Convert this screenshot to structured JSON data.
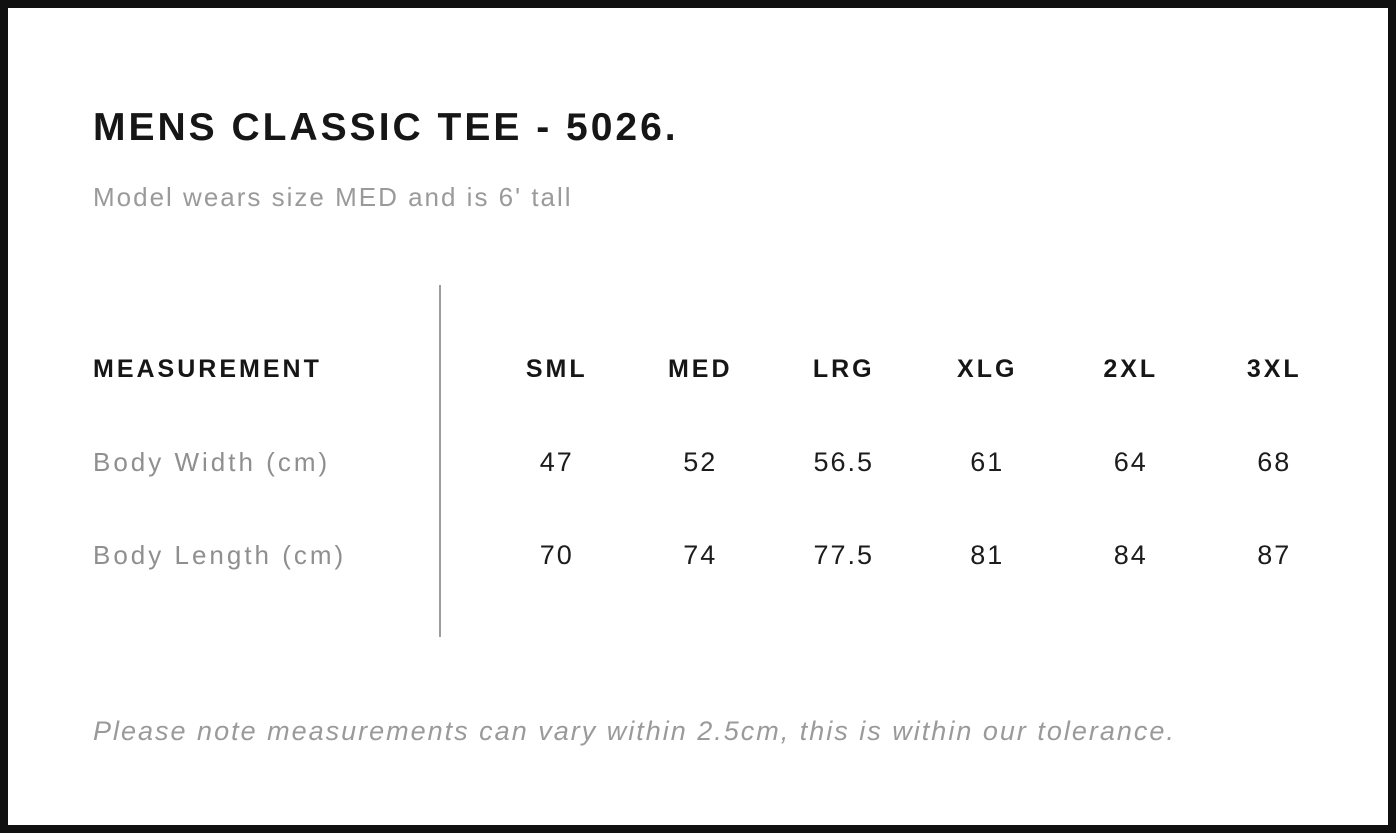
{
  "page": {
    "title": "MENS CLASSIC TEE - 5026.",
    "subtitle": "Model wears size MED and is 6' tall",
    "footnote": "Please note measurements can vary within 2.5cm, this is within our tolerance."
  },
  "table": {
    "label_header": "MEASUREMENT",
    "size_headers": [
      "SML",
      "MED",
      "LRG",
      "XLG",
      "2XL",
      "3XL"
    ],
    "rows": [
      {
        "label": "Body Width (cm)",
        "values": [
          "47",
          "52",
          "56.5",
          "61",
          "64",
          "68"
        ]
      },
      {
        "label": "Body Length (cm)",
        "values": [
          "70",
          "74",
          "77.5",
          "81",
          "84",
          "87"
        ]
      }
    ]
  },
  "colors": {
    "border": "#101010",
    "text_dark": "#161616",
    "text_gray": "#9a9a9a",
    "divider": "#9c9c9c",
    "background": "#ffffff"
  }
}
